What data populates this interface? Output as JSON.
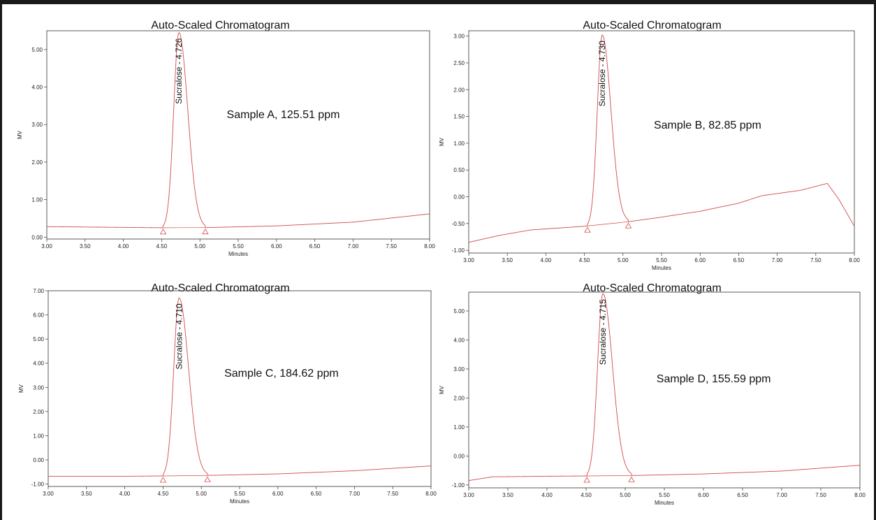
{
  "colors": {
    "trace": "#d24a4a",
    "axis": "#333333",
    "frame": "#1a1a1a"
  },
  "chart_data": [
    {
      "type": "line",
      "title": "Auto-Scaled Chromatogram",
      "xlabel": "Minutes",
      "ylabel": "MV",
      "xlim": [
        3.0,
        8.0
      ],
      "ylim": [
        -0.05,
        5.5
      ],
      "x_ticks": [
        "3.00",
        "3.50",
        "4.00",
        "4.50",
        "5.00",
        "5.50",
        "6.00",
        "6.50",
        "7.00",
        "7.50",
        "8.00"
      ],
      "y_ticks": [
        "0.00",
        "1.00",
        "2.00",
        "3.00",
        "4.00",
        "5.00"
      ],
      "peak": {
        "label": "Sucralose - 4.726",
        "rt": 4.726,
        "height": 5.45,
        "start": 4.52,
        "end": 5.07
      },
      "baseline_points": [
        [
          3.0,
          0.28
        ],
        [
          4.5,
          0.25
        ],
        [
          5.0,
          0.25
        ],
        [
          6.0,
          0.3
        ],
        [
          7.0,
          0.4
        ],
        [
          8.0,
          0.62
        ]
      ],
      "annotation": "Sample A, 125.51 ppm"
    },
    {
      "type": "line",
      "title": "Auto-Scaled Chromatogram",
      "xlabel": "Minutes",
      "ylabel": "MV",
      "xlim": [
        3.0,
        8.0
      ],
      "ylim": [
        -1.05,
        3.1
      ],
      "x_ticks": [
        "3.00",
        "3.50",
        "4.00",
        "4.50",
        "5.00",
        "5.50",
        "6.00",
        "6.50",
        "7.00",
        "7.50",
        "8.00"
      ],
      "y_ticks": [
        "-1.00",
        "-0.50",
        "0.00",
        "0.50",
        "1.00",
        "1.50",
        "2.00",
        "2.50",
        "3.00"
      ],
      "peak": {
        "label": "Sucralose - 4.730",
        "rt": 4.73,
        "height": 3.02,
        "start": 4.54,
        "end": 5.07
      },
      "baseline_points": [
        [
          3.0,
          -0.85
        ],
        [
          3.4,
          -0.72
        ],
        [
          3.8,
          -0.62
        ],
        [
          4.5,
          -0.55
        ],
        [
          5.0,
          -0.48
        ],
        [
          5.5,
          -0.38
        ],
        [
          6.0,
          -0.27
        ],
        [
          6.5,
          -0.12
        ],
        [
          6.8,
          0.02
        ],
        [
          7.3,
          0.12
        ],
        [
          7.65,
          0.25
        ],
        [
          7.8,
          -0.05
        ],
        [
          8.0,
          -0.55
        ]
      ],
      "annotation": "Sample B, 82.85 ppm"
    },
    {
      "type": "line",
      "title": "Auto-Scaled Chromatogram",
      "xlabel": "Minutes",
      "ylabel": "MV",
      "xlim": [
        3.0,
        8.0
      ],
      "ylim": [
        -1.1,
        7.0
      ],
      "x_ticks": [
        "3.00",
        "3.50",
        "4.00",
        "4.50",
        "5.00",
        "5.50",
        "6.00",
        "6.50",
        "7.00",
        "7.50",
        "8.00"
      ],
      "y_ticks": [
        "-1.00",
        "0.00",
        "1.00",
        "2.00",
        "3.00",
        "4.00",
        "5.00",
        "6.00",
        "7.00"
      ],
      "peak": {
        "label": "Sucralose - 4.710",
        "rt": 4.71,
        "height": 6.7,
        "start": 4.5,
        "end": 5.08
      },
      "baseline_points": [
        [
          3.0,
          -0.68
        ],
        [
          4.0,
          -0.68
        ],
        [
          5.0,
          -0.65
        ],
        [
          6.0,
          -0.58
        ],
        [
          7.0,
          -0.45
        ],
        [
          8.0,
          -0.25
        ]
      ],
      "annotation": "Sample C, 184.62 ppm"
    },
    {
      "type": "line",
      "title": "Auto-Scaled Chromatogram",
      "xlabel": "Minutes",
      "ylabel": "MV",
      "xlim": [
        3.0,
        8.0
      ],
      "ylim": [
        -1.1,
        5.65
      ],
      "x_ticks": [
        "3.00",
        "3.50",
        "4.00",
        "4.50",
        "5.00",
        "5.50",
        "6.00",
        "6.50",
        "7.00",
        "7.50",
        "8.00"
      ],
      "y_ticks": [
        "-1.00",
        "0.00",
        "1.00",
        "2.00",
        "3.00",
        "4.00",
        "5.00"
      ],
      "peak": {
        "label": "Sucralose - 4.715",
        "rt": 4.715,
        "height": 5.6,
        "start": 4.51,
        "end": 5.08
      },
      "baseline_points": [
        [
          3.0,
          -0.85
        ],
        [
          3.3,
          -0.72
        ],
        [
          4.0,
          -0.7
        ],
        [
          5.0,
          -0.68
        ],
        [
          6.0,
          -0.62
        ],
        [
          7.0,
          -0.52
        ],
        [
          8.0,
          -0.32
        ]
      ],
      "annotation": "Sample D, 155.59 ppm"
    }
  ]
}
